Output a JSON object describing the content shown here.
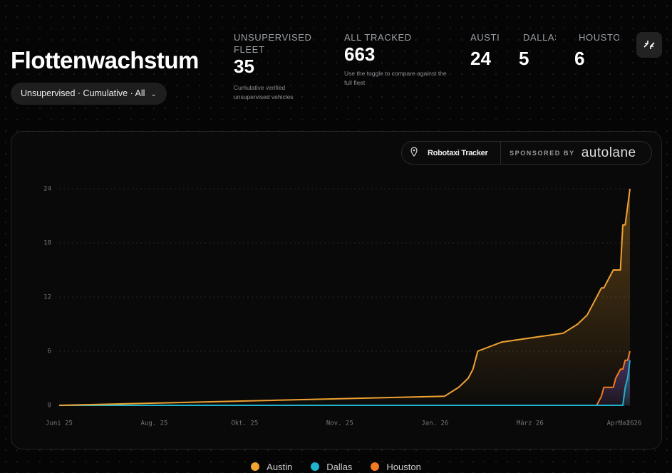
{
  "header": {
    "title": "Flottenwachstum",
    "filter": "Unsupervised · Cumulative · All"
  },
  "stats": [
    {
      "label": "UNSUPERVISED FLEET",
      "value": 35,
      "note": "Cumulative verified unsupervised vehicles"
    },
    {
      "label": "ALL TRACKED",
      "value": 663,
      "note": "Use the toggle to compare against the full fleet"
    },
    {
      "label": "AUSTIN",
      "value": 24
    },
    {
      "label": "DALLAS",
      "value": 5
    },
    {
      "label": "HOUSTON",
      "value": 6
    }
  ],
  "badge": {
    "label": "Robotaxi Tracker",
    "sponsored": "SPONSORED BY",
    "brand": "autolane"
  },
  "chart_data": {
    "type": "line",
    "area": true,
    "grid": true,
    "x": [
      0,
      81,
      84,
      86,
      87,
      87.5,
      88,
      93,
      106,
      109,
      111,
      112,
      113,
      114,
      114.5,
      116.5,
      117,
      118,
      118.5,
      119,
      119.5,
      120
    ],
    "xlim": [
      0,
      120
    ],
    "xticks": [
      {
        "value": 0,
        "label": "Juni 25"
      },
      {
        "value": 20,
        "label": "Aug. 25"
      },
      {
        "value": 39,
        "label": "Okt. 25"
      },
      {
        "value": 59,
        "label": "Nov. 25"
      },
      {
        "value": 79,
        "label": "Jan. 26"
      },
      {
        "value": 99,
        "label": "März 26"
      },
      {
        "value": 118,
        "label": "Apr. 26"
      },
      {
        "value": 120,
        "label": "Mai 26"
      }
    ],
    "ylim": [
      0,
      24
    ],
    "yticks": [
      0,
      6,
      12,
      18,
      24
    ],
    "series": [
      {
        "name": "Austin",
        "color": "#f0a232",
        "values": [
          0,
          1,
          2,
          3,
          4,
          5,
          6,
          7,
          8,
          9,
          10,
          11,
          12,
          13,
          13,
          15,
          15,
          15,
          20,
          20,
          22,
          24
        ]
      },
      {
        "name": "Dallas",
        "color": "#1fb3cc",
        "values": [
          0,
          0,
          0,
          0,
          0,
          0,
          0,
          0,
          0,
          0,
          0,
          0,
          0,
          0,
          0,
          0,
          0,
          0,
          0,
          2,
          3,
          5
        ]
      },
      {
        "name": "Houston",
        "color": "#f07a22",
        "values": [
          0,
          0,
          0,
          0,
          0,
          0,
          0,
          0,
          0,
          0,
          0,
          0,
          0,
          1,
          2,
          2,
          3,
          4,
          4,
          5,
          5,
          6
        ]
      }
    ]
  }
}
